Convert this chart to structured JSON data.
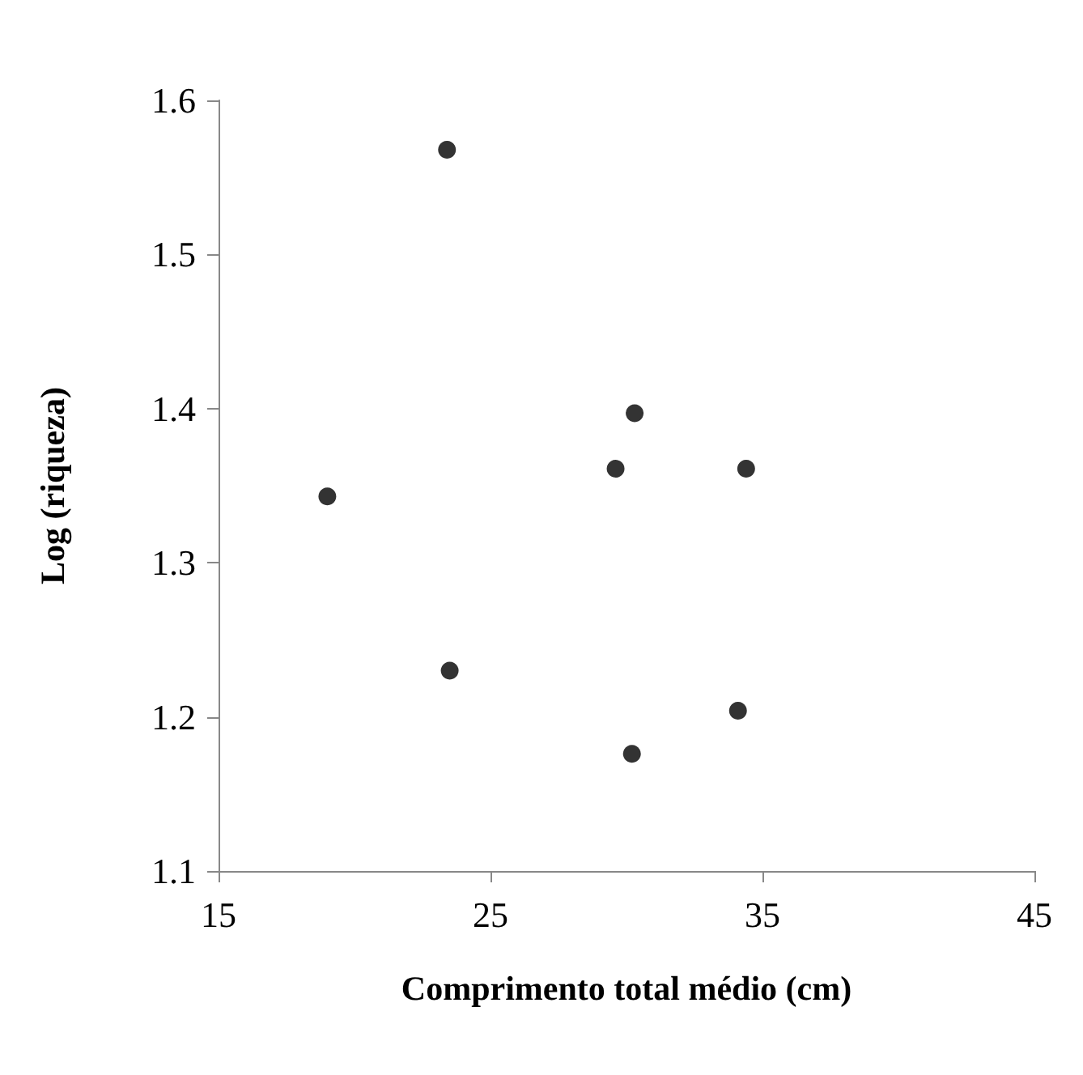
{
  "chart_data": {
    "type": "scatter",
    "xlabel": "Comprimento total médio (cm)",
    "ylabel": "Log (riqueza)",
    "x": [
      23.4,
      19.0,
      30.3,
      29.6,
      34.4,
      23.5,
      34.1,
      30.2
    ],
    "series": [
      {
        "color": "#000000",
        "values": [
          1.568,
          1.343,
          1.397,
          1.361,
          1.361,
          1.23,
          1.204,
          1.176
        ]
      }
    ],
    "xlim": [
      15,
      45
    ],
    "xticks": [
      15,
      25,
      35,
      45
    ],
    "ylim": [
      1.1,
      1.6
    ],
    "yticks": [
      1.1,
      1.2,
      1.3,
      1.4,
      1.5,
      1.6
    ],
    "grid": false,
    "marker": "circle"
  }
}
